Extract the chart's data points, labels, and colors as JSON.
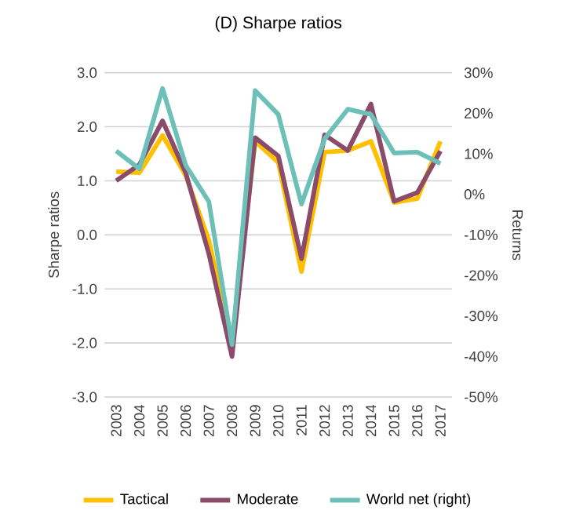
{
  "chart_data": {
    "type": "line",
    "title": "(D) Sharpe ratios",
    "ylabel": "Sharpe ratios",
    "y2label": "Returns",
    "categories": [
      "2003",
      "2004",
      "2005",
      "2006",
      "2007",
      "2008",
      "2009",
      "2010",
      "2011",
      "2012",
      "2013",
      "2014",
      "2015",
      "2016",
      "2017"
    ],
    "series": [
      {
        "name": "Tactical",
        "color": "#ffc000",
        "values": [
          1.17,
          1.15,
          1.84,
          1.1,
          -0.1,
          -2.0,
          1.73,
          1.34,
          -0.68,
          1.53,
          1.56,
          1.73,
          0.6,
          0.67,
          1.73
        ]
      },
      {
        "name": "Moderate",
        "color": "#8b4b6a",
        "values": [
          1.0,
          1.3,
          2.11,
          1.15,
          -0.35,
          -2.25,
          1.8,
          1.46,
          -0.44,
          1.85,
          1.56,
          2.42,
          0.62,
          0.78,
          1.55
        ]
      },
      {
        "name": "World net (right)",
        "color": "#6cc0b8",
        "axis": "y2",
        "values": [
          10.7,
          6.3,
          26.1,
          7.2,
          -1.8,
          -37.1,
          25.6,
          19.7,
          -2.4,
          13.7,
          21.0,
          19.7,
          10.2,
          10.4,
          7.6
        ]
      }
    ],
    "ylim": [
      -3,
      3
    ],
    "yticks": [
      {
        "value": -3,
        "label": "-3.0"
      },
      {
        "value": -2,
        "label": "-2.0"
      },
      {
        "value": -1,
        "label": "-1.0"
      },
      {
        "value": 0,
        "label": "0.0"
      },
      {
        "value": 1,
        "label": "1.0"
      },
      {
        "value": 2,
        "label": "2.0"
      },
      {
        "value": 3,
        "label": "3.0"
      }
    ],
    "y2lim": [
      -50,
      30
    ],
    "y2ticks": [
      {
        "value": -50,
        "label": "-50%"
      },
      {
        "value": -40,
        "label": "-40%"
      },
      {
        "value": -30,
        "label": "-30%"
      },
      {
        "value": -20,
        "label": "-20%"
      },
      {
        "value": -10,
        "label": "-10%"
      },
      {
        "value": 0,
        "label": "0%"
      },
      {
        "value": 10,
        "label": "10%"
      },
      {
        "value": 20,
        "label": "20%"
      },
      {
        "value": 30,
        "label": "30%"
      }
    ],
    "grid": "y",
    "legend": "bottom"
  }
}
